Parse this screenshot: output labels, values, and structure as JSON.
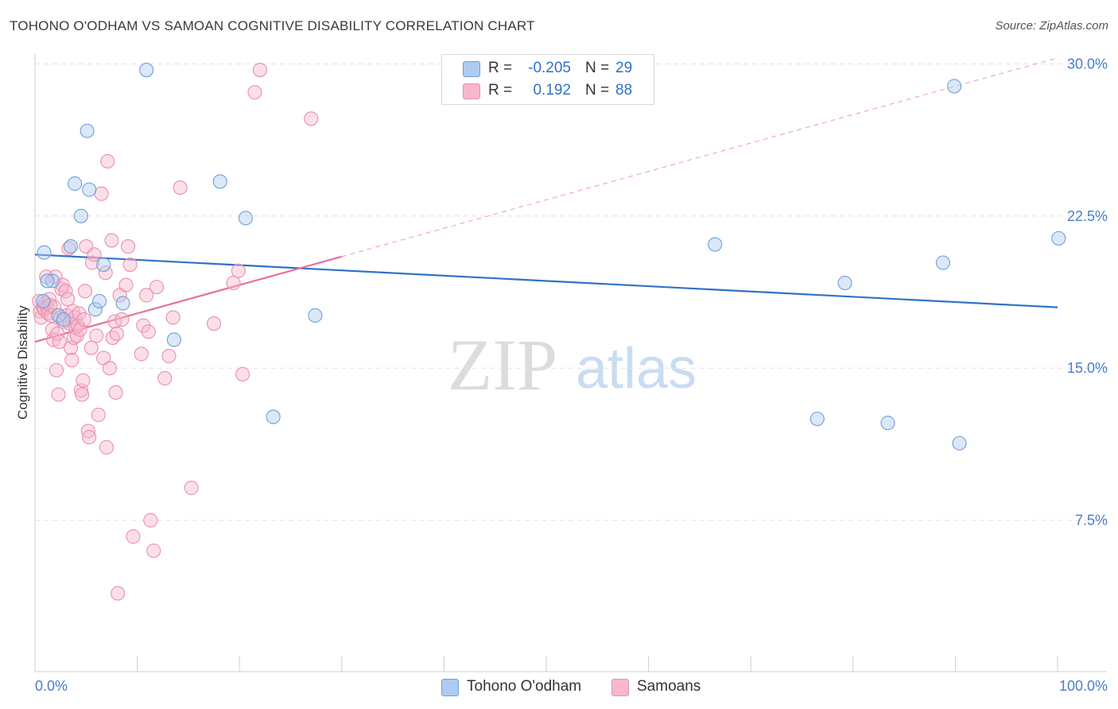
{
  "title": "TOHONO O'ODHAM VS SAMOAN COGNITIVE DISABILITY CORRELATION CHART",
  "source": "Source: ZipAtlas.com",
  "watermark": {
    "zip": "ZIP",
    "atlas": "atlas"
  },
  "colors": {
    "blue_fill": "#aecbf0",
    "blue_stroke": "#6f9fd8",
    "blue_line": "#2f72c8",
    "pink_fill": "#f7b8cb",
    "pink_stroke": "#ea8fac",
    "pink_line": "#e8709a",
    "grid": "#e3e3e3",
    "axis_text": "#4a7cc9"
  },
  "legend": {
    "rows": [
      {
        "r_label": "R =",
        "r_value": "-0.205",
        "n_label": "N =",
        "n_value": "29"
      },
      {
        "r_label": "R =",
        "r_value": "0.192",
        "n_label": "N =",
        "n_value": "88"
      }
    ]
  },
  "bottom_legend": [
    {
      "label": "Tohono O'odham"
    },
    {
      "label": "Samoans"
    }
  ],
  "chart_data": {
    "type": "scatter",
    "title": "TOHONO O'ODHAM VS SAMOAN COGNITIVE DISABILITY CORRELATION CHART",
    "xlabel": "",
    "ylabel": "Cognitive Disability",
    "xlim": [
      0,
      100
    ],
    "ylim": [
      0,
      31
    ],
    "x_tick_labels": [
      "0.0%",
      "100.0%"
    ],
    "y_ticks": [
      7.5,
      15.0,
      22.5,
      30.0
    ],
    "y_tick_labels": [
      "7.5%",
      "15.0%",
      "22.5%",
      "30.0%"
    ],
    "series": [
      {
        "name": "Tohono O'odham",
        "r": -0.205,
        "n": 29,
        "trend": {
          "x": [
            0,
            100
          ],
          "y": [
            20.6,
            18.0
          ]
        },
        "points": [
          [
            0.8,
            18.3
          ],
          [
            0.9,
            20.7
          ],
          [
            1.7,
            19.3
          ],
          [
            2.3,
            17.6
          ],
          [
            2.8,
            17.4
          ],
          [
            3.5,
            21.0
          ],
          [
            3.9,
            24.1
          ],
          [
            4.5,
            22.5
          ],
          [
            5.1,
            26.7
          ],
          [
            5.3,
            23.8
          ],
          [
            5.9,
            17.9
          ],
          [
            6.3,
            18.3
          ],
          [
            6.7,
            20.1
          ],
          [
            8.6,
            18.2
          ],
          [
            10.9,
            29.7
          ],
          [
            13.6,
            16.4
          ],
          [
            18.1,
            24.2
          ],
          [
            20.6,
            22.4
          ],
          [
            23.3,
            12.6
          ],
          [
            27.4,
            17.6
          ],
          [
            66.5,
            21.1
          ],
          [
            76.5,
            12.5
          ],
          [
            79.2,
            19.2
          ],
          [
            83.4,
            12.3
          ],
          [
            88.8,
            20.2
          ],
          [
            89.9,
            28.9
          ],
          [
            90.4,
            11.3
          ],
          [
            100.1,
            21.4
          ],
          [
            1.2,
            19.3
          ]
        ]
      },
      {
        "name": "Samoans",
        "r": 0.192,
        "n": 88,
        "trend": {
          "x": [
            0,
            30
          ],
          "y": [
            16.3,
            20.5
          ],
          "x_dashed_end": 100,
          "y_dashed_end": 30.3
        },
        "points": [
          [
            0.4,
            18.3
          ],
          [
            0.5,
            17.8
          ],
          [
            0.6,
            17.5
          ],
          [
            0.8,
            18.0
          ],
          [
            0.9,
            17.9
          ],
          [
            1.0,
            18.2
          ],
          [
            1.1,
            19.5
          ],
          [
            1.2,
            18.0
          ],
          [
            1.3,
            17.7
          ],
          [
            1.4,
            18.4
          ],
          [
            1.5,
            18.1
          ],
          [
            1.6,
            17.6
          ],
          [
            1.7,
            16.9
          ],
          [
            1.8,
            16.4
          ],
          [
            1.9,
            18.0
          ],
          [
            2.0,
            19.5
          ],
          [
            2.1,
            14.9
          ],
          [
            2.2,
            16.7
          ],
          [
            2.3,
            13.7
          ],
          [
            2.4,
            16.3
          ],
          [
            2.5,
            17.5
          ],
          [
            2.6,
            18.9
          ],
          [
            2.7,
            19.1
          ],
          [
            2.8,
            17.3
          ],
          [
            3.0,
            18.8
          ],
          [
            3.1,
            17.6
          ],
          [
            3.2,
            18.4
          ],
          [
            3.3,
            20.9
          ],
          [
            3.4,
            17.2
          ],
          [
            3.5,
            16.0
          ],
          [
            3.6,
            15.4
          ],
          [
            3.7,
            17.8
          ],
          [
            3.8,
            16.5
          ],
          [
            3.9,
            17.5
          ],
          [
            4.0,
            17.0
          ],
          [
            4.1,
            16.6
          ],
          [
            4.2,
            17.1
          ],
          [
            4.3,
            17.7
          ],
          [
            4.4,
            16.9
          ],
          [
            4.5,
            13.9
          ],
          [
            4.6,
            13.7
          ],
          [
            4.7,
            14.4
          ],
          [
            4.8,
            17.4
          ],
          [
            4.9,
            18.8
          ],
          [
            5.0,
            21.0
          ],
          [
            5.2,
            11.9
          ],
          [
            5.3,
            11.6
          ],
          [
            5.5,
            16.0
          ],
          [
            5.6,
            20.2
          ],
          [
            5.8,
            20.6
          ],
          [
            6.0,
            16.6
          ],
          [
            6.2,
            12.7
          ],
          [
            6.5,
            23.6
          ],
          [
            6.7,
            15.5
          ],
          [
            6.9,
            19.7
          ],
          [
            7.0,
            11.1
          ],
          [
            7.1,
            25.2
          ],
          [
            7.3,
            15.0
          ],
          [
            7.5,
            21.3
          ],
          [
            7.6,
            16.5
          ],
          [
            7.8,
            17.3
          ],
          [
            7.9,
            13.8
          ],
          [
            8.0,
            16.7
          ],
          [
            8.1,
            3.9
          ],
          [
            8.3,
            18.6
          ],
          [
            8.5,
            17.4
          ],
          [
            8.9,
            19.1
          ],
          [
            9.1,
            21.0
          ],
          [
            9.3,
            20.1
          ],
          [
            9.6,
            6.7
          ],
          [
            10.4,
            15.7
          ],
          [
            10.6,
            17.1
          ],
          [
            10.9,
            18.6
          ],
          [
            11.1,
            16.8
          ],
          [
            11.3,
            7.5
          ],
          [
            11.6,
            6.0
          ],
          [
            11.9,
            19.0
          ],
          [
            12.7,
            14.5
          ],
          [
            13.1,
            15.6
          ],
          [
            13.5,
            17.5
          ],
          [
            14.2,
            23.9
          ],
          [
            15.3,
            9.1
          ],
          [
            17.5,
            17.2
          ],
          [
            19.4,
            19.2
          ],
          [
            19.9,
            19.8
          ],
          [
            20.3,
            14.7
          ],
          [
            21.5,
            28.6
          ],
          [
            22.0,
            29.7
          ],
          [
            27.0,
            27.3
          ]
        ]
      }
    ]
  }
}
